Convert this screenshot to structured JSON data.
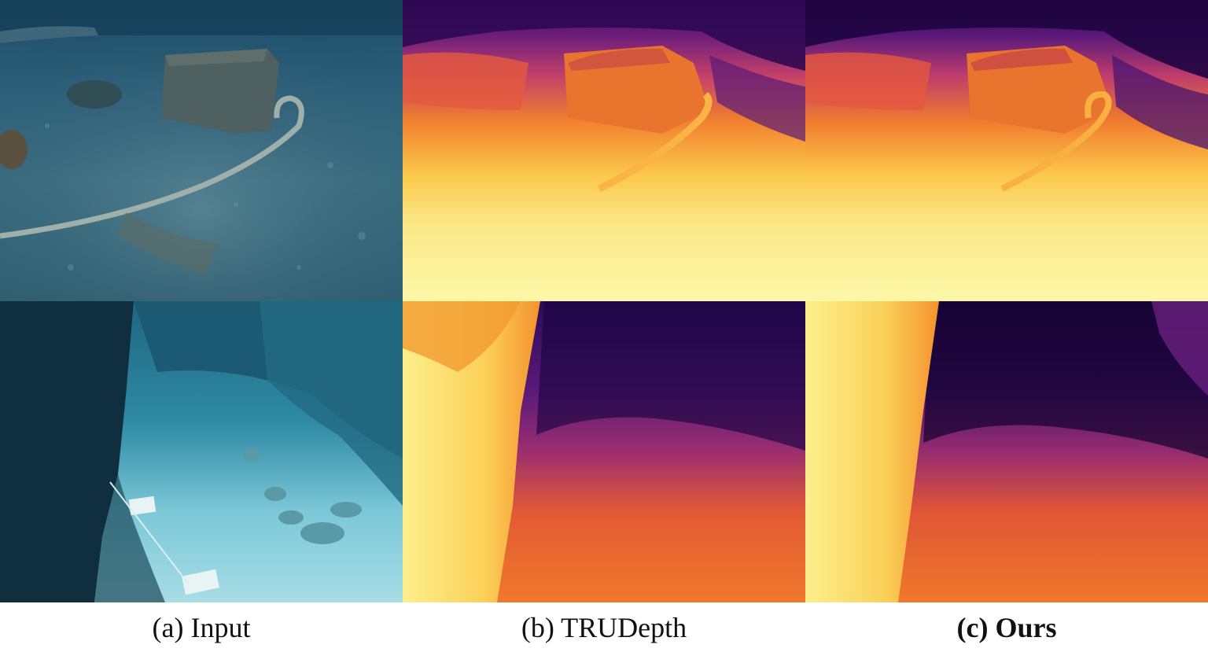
{
  "figure": {
    "rows": [
      {
        "scene": "Underwater scene with a concrete block and a coiled cable on rocky seabed",
        "panels": [
          "input-photo",
          "trudepth-depth-map",
          "ours-depth-map"
        ]
      },
      {
        "scene": "Underwater scene with a dark rock wall on the left and sandy seabed",
        "panels": [
          "input-photo",
          "trudepth-depth-map",
          "ours-depth-map"
        ]
      }
    ],
    "colormap": "inferno",
    "captions": {
      "input": "(a) Input",
      "trudepth": "(b) TRUDepth",
      "ours": "(c) Ours"
    }
  }
}
